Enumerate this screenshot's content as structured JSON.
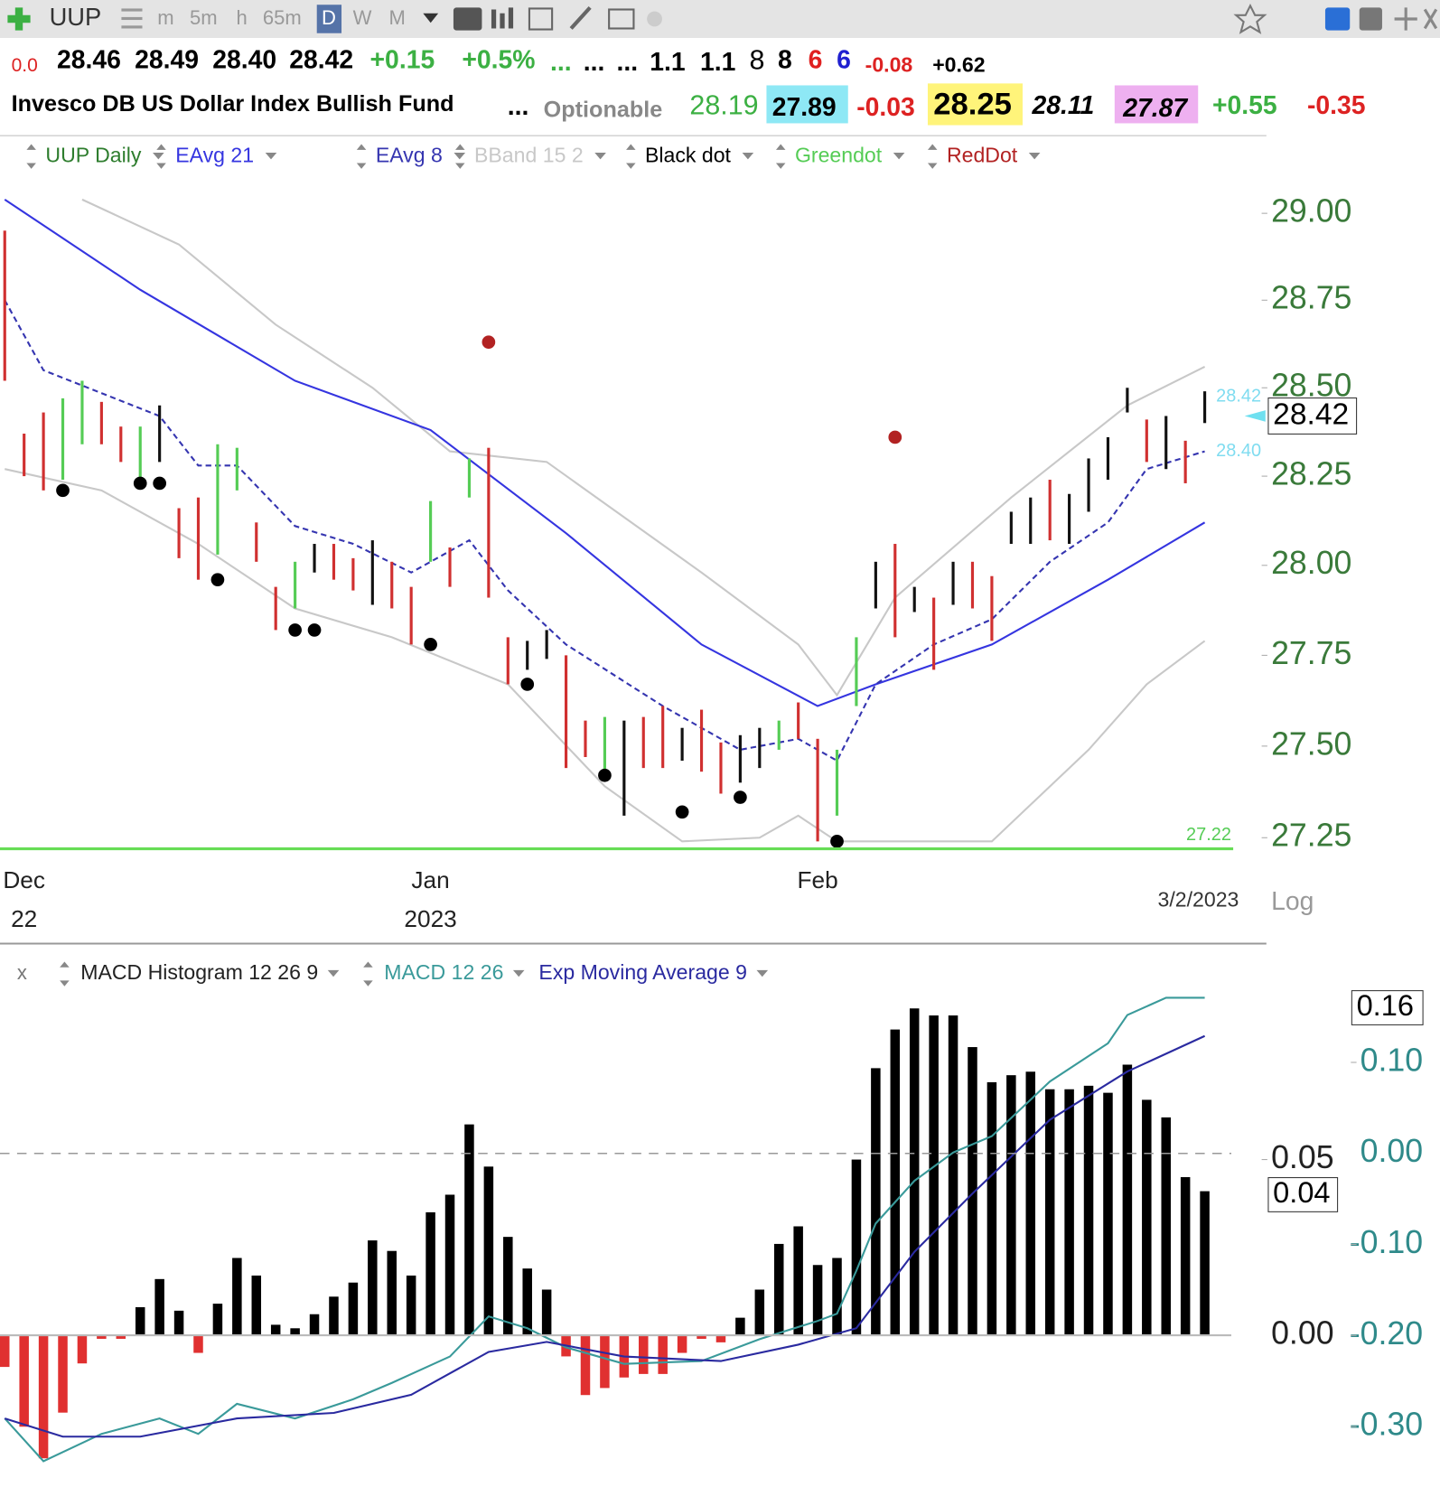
{
  "toolbar": {
    "symbol": "UUP",
    "intervals": [
      "m",
      "5m",
      "h",
      "65m",
      "D",
      "W",
      "M"
    ]
  },
  "quote": {
    "change_small": "0.0",
    "open": "28.46",
    "high": "28.49",
    "low": "28.40",
    "last": "28.42",
    "change": "+0.15",
    "change_pct": "+0.5%",
    "dots": [
      "...",
      "...",
      "..."
    ],
    "row1": [
      "1.1",
      "1.1",
      "8",
      "8",
      "6",
      "6",
      "-0.08",
      "+0.62"
    ],
    "name": "Invesco DB US Dollar Index Bullish Fund",
    "ellipsis": "...",
    "optionable": "Optionable",
    "row2": [
      "28.19",
      "27.89",
      "-0.03",
      "28.25",
      "28.11",
      "27.87",
      "+0.55",
      "-0.35"
    ]
  },
  "chart_data": [
    {
      "type": "ohlc",
      "log": true,
      "ylim": [
        27.22,
        29.22
      ],
      "yticks": [
        27.25,
        {
          "value": 27.5,
          "label": "27.50"
        },
        27.75,
        {
          "value": 28,
          "label": "28.00"
        },
        28.25,
        {
          "value": 28.5,
          "label": "28.50"
        },
        28.75,
        {
          "value": 29,
          "label": "29.00"
        }
      ],
      "categories": [
        null,
        "Dec",
        null,
        null,
        null,
        null,
        null,
        null,
        null,
        null,
        null,
        null,
        null,
        null,
        null,
        null,
        null,
        null,
        null,
        null,
        null,
        null,
        "Jan",
        null,
        null,
        null,
        null,
        null,
        null,
        null,
        null,
        null,
        null,
        null,
        null,
        null,
        null,
        null,
        null,
        null,
        null,
        null,
        "Feb",
        null,
        null,
        null,
        null,
        null,
        null,
        null,
        null,
        null,
        null,
        null,
        null,
        null,
        null,
        null,
        null,
        null,
        null,
        null,
        null
      ],
      "years": [
        null,
        "22",
        null,
        null,
        null,
        null,
        null,
        null,
        null,
        null,
        null,
        null,
        null,
        null,
        null,
        null,
        null,
        null,
        null,
        null,
        null,
        null,
        "2023",
        null,
        null,
        null,
        null,
        null,
        null,
        null,
        null,
        null,
        null,
        null,
        null,
        null,
        null,
        null,
        null,
        null,
        null,
        null,
        null,
        null,
        null,
        null,
        null,
        null,
        null,
        null,
        null,
        null,
        null,
        null,
        null,
        null,
        null,
        null,
        null,
        null,
        null,
        null,
        null
      ],
      "date_label": "3/2/2023",
      "scale_label": "Log",
      "bars": {
        "name": "UUP Daily",
        "color": "#2e7d2e",
        "high": [
          28.95,
          28.37,
          28.43,
          28.47,
          28.52,
          28.46,
          28.39,
          28.39,
          28.45,
          28.16,
          28.19,
          28.34,
          28.33,
          28.12,
          27.94,
          28.01,
          28.06,
          28.06,
          28.02,
          28.07,
          28.01,
          27.94,
          28.18,
          28.05,
          28.3,
          28.33,
          27.8,
          27.79,
          27.82,
          27.75,
          27.57,
          27.58,
          27.57,
          27.58,
          27.61,
          27.55,
          27.6,
          27.51,
          27.53,
          27.55,
          27.57,
          27.62,
          27.52,
          27.49,
          27.8,
          28.01,
          28.06,
          27.94,
          27.91,
          28.01,
          28.01,
          27.97,
          28.15,
          28.19,
          28.24,
          28.2,
          28.3,
          28.36,
          28.5,
          28.41,
          28.42,
          28.35,
          28.49
        ],
        "low": [
          28.52,
          28.25,
          28.21,
          28.24,
          28.34,
          28.34,
          28.29,
          28.24,
          28.29,
          28.02,
          27.96,
          28.03,
          28.21,
          28.01,
          27.82,
          27.88,
          27.98,
          27.96,
          27.93,
          27.89,
          27.88,
          27.78,
          28.01,
          27.94,
          28.19,
          27.91,
          27.67,
          27.71,
          27.74,
          27.44,
          27.47,
          27.43,
          27.31,
          27.44,
          27.44,
          27.46,
          27.43,
          27.37,
          27.4,
          27.44,
          27.49,
          27.52,
          27.24,
          27.31,
          27.61,
          27.88,
          27.8,
          27.87,
          27.71,
          27.89,
          27.88,
          27.79,
          28.06,
          28.06,
          28.07,
          28.06,
          28.15,
          28.24,
          28.43,
          28.29,
          28.27,
          28.23,
          28.4
        ],
        "colors": [
          "#d03030",
          "#d03030",
          "#d03030",
          "#55cc55",
          "#55cc55",
          "#d03030",
          "#d03030",
          "#55cc55",
          "#111111",
          "#d03030",
          "#d03030",
          "#55cc55",
          "#55cc55",
          "#d03030",
          "#d03030",
          "#55cc55",
          "#111111",
          "#d03030",
          "#d03030",
          "#111111",
          "#d03030",
          "#d03030",
          "#55cc55",
          "#d03030",
          "#55cc55",
          "#d03030",
          "#d03030",
          "#111111",
          "#111111",
          "#d03030",
          "#d03030",
          "#55cc55",
          "#111111",
          "#d03030",
          "#d03030",
          "#111111",
          "#d03030",
          "#d03030",
          "#111111",
          "#111111",
          "#55cc55",
          "#d03030",
          "#d03030",
          "#55cc55",
          "#55cc55",
          "#111111",
          "#d03030",
          "#111111",
          "#d03030",
          "#111111",
          "#d03030",
          "#d03030",
          "#111111",
          "#111111",
          "#d03030",
          "#111111",
          "#111111",
          "#111111",
          "#111111",
          "#d03030",
          "#111111",
          "#d03030",
          "#111111"
        ]
      },
      "lines": [
        {
          "name": "EAvg 21",
          "color": "#3535e0",
          "dashed": false,
          "x": [
            0,
            7,
            15,
            22,
            29,
            36,
            42,
            45,
            51,
            57,
            62
          ],
          "values": [
            29.04,
            28.78,
            28.52,
            28.38,
            28.09,
            27.78,
            27.61,
            27.67,
            27.78,
            27.96,
            28.12
          ]
        },
        {
          "name": "EAvg 8",
          "color": "#3535b0",
          "dashed": true,
          "x": [
            0,
            2,
            8,
            10,
            12,
            15,
            18,
            21,
            24,
            26,
            29,
            34,
            38,
            41,
            43,
            45,
            48,
            51,
            54,
            57,
            59,
            62
          ],
          "values": [
            28.75,
            28.55,
            28.42,
            28.28,
            28.28,
            28.11,
            28.06,
            27.98,
            28.07,
            27.93,
            27.78,
            27.61,
            27.49,
            27.52,
            27.46,
            27.67,
            27.78,
            27.85,
            28.01,
            28.12,
            28.27,
            28.32
          ]
        }
      ],
      "bband": {
        "name": "BBand 15 2",
        "color": "#c8c8c8",
        "x_upper": [
          4,
          9,
          14,
          19,
          23,
          28,
          36,
          41,
          43,
          46,
          52,
          58,
          62
        ],
        "upper": [
          29.04,
          28.91,
          28.68,
          28.5,
          28.32,
          28.29,
          27.98,
          27.78,
          27.64,
          27.91,
          28.19,
          28.45,
          28.56
        ],
        "x_lower": [
          0,
          5,
          10,
          15,
          20,
          26,
          31,
          35,
          39,
          41,
          43,
          51,
          56,
          59,
          62
        ],
        "lower": [
          28.27,
          28.21,
          28.06,
          27.88,
          27.8,
          27.67,
          27.39,
          27.24,
          27.25,
          27.31,
          27.24,
          27.24,
          27.49,
          27.67,
          27.79
        ]
      },
      "dots": [
        {
          "name": "Black dot",
          "color": "#000000",
          "x": [
            3,
            7,
            8,
            11,
            15,
            16,
            22,
            27,
            31,
            35,
            38,
            43
          ],
          "values": [
            28.21,
            28.23,
            28.23,
            27.96,
            27.82,
            27.82,
            27.78,
            27.67,
            27.42,
            27.32,
            27.36,
            27.24
          ]
        },
        {
          "name": "Greendot",
          "color": "#55cc55",
          "x": [],
          "values": []
        },
        {
          "name": "RedDot",
          "color": "#b22222",
          "x": [
            25,
            46
          ],
          "values": [
            28.63,
            28.36
          ]
        }
      ],
      "support_line": {
        "value": 27.22,
        "color": "#66dd55"
      },
      "last_price": 28.42,
      "cyan_tags": [
        28.42,
        {
          "value": 28.4,
          "label": "28.40"
        }
      ]
    },
    {
      "type": "macd",
      "close_label": "x",
      "ylim": [
        -0.041,
        0.102
      ],
      "yticks": [
        {
          "value": 0,
          "label": "0.00"
        },
        0.05
      ],
      "y2lim": [
        -0.358,
        0.194
      ],
      "y2ticks": [
        {
          "value": -0.3,
          "label": "-0.30"
        },
        {
          "value": -0.2,
          "label": "-0.20"
        },
        {
          "value": -0.1,
          "label": "-0.10"
        },
        {
          "value": 0,
          "label": "0.00"
        },
        {
          "value": 0.1,
          "label": "0.10"
        }
      ],
      "histogram": {
        "name": "MACD Histogram 12 26 9",
        "pos_color": "#000000",
        "neg_color": "#e03030",
        "values": [
          -0.009,
          -0.026,
          -0.035,
          -0.022,
          -0.008,
          -0.001,
          -0.001,
          0.008,
          0.016,
          0.007,
          -0.005,
          0.009,
          0.022,
          0.017,
          0.003,
          0.002,
          0.006,
          0.011,
          0.015,
          0.027,
          0.024,
          0.017,
          0.035,
          0.04,
          0.06,
          0.048,
          0.028,
          0.019,
          0.013,
          -0.006,
          -0.017,
          -0.015,
          -0.012,
          -0.011,
          -0.011,
          -0.005,
          -0.001,
          -0.002,
          0.005,
          0.013,
          0.026,
          0.031,
          0.02,
          0.022,
          0.05,
          0.076,
          0.087,
          0.093,
          0.091,
          0.091,
          0.082,
          0.072,
          0.074,
          0.075,
          0.07,
          0.07,
          0.071,
          0.069,
          0.077,
          0.067,
          0.062,
          0.045,
          0.041
        ]
      },
      "series": [
        {
          "name": "MACD 12 26",
          "color": "#3a9a9a",
          "axis": "y2",
          "x": [
            0,
            2,
            5,
            8,
            10,
            12,
            15,
            18,
            20,
            23,
            25,
            27,
            29,
            32,
            36,
            39,
            42,
            43,
            44,
            45,
            47,
            49,
            51,
            54,
            57,
            58,
            60,
            62
          ],
          "values": [
            -0.291,
            -0.338,
            -0.308,
            -0.291,
            -0.308,
            -0.275,
            -0.291,
            -0.27,
            -0.252,
            -0.223,
            -0.179,
            -0.192,
            -0.213,
            -0.231,
            -0.228,
            -0.204,
            -0.184,
            -0.176,
            -0.129,
            -0.077,
            -0.03,
            0.001,
            0.019,
            0.079,
            0.121,
            0.152,
            0.171,
            0.171
          ]
        },
        {
          "name": "Exp Moving Average 9",
          "color": "#2a2aa0",
          "axis": "y2",
          "x": [
            0,
            3,
            7,
            12,
            17,
            21,
            25,
            28,
            32,
            37,
            41,
            44,
            47,
            50,
            54,
            58,
            62
          ],
          "values": [
            -0.291,
            -0.311,
            -0.311,
            -0.291,
            -0.285,
            -0.265,
            -0.218,
            -0.207,
            -0.223,
            -0.228,
            -0.21,
            -0.192,
            -0.108,
            -0.044,
            0.037,
            0.09,
            0.129
          ]
        }
      ],
      "last_macd": 0.16,
      "last_hist": 0.04
    }
  ]
}
